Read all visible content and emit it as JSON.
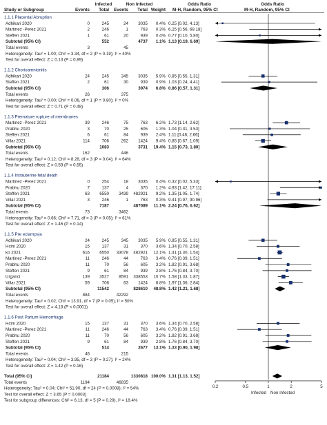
{
  "chart_data": {
    "type": "forest",
    "header": {
      "group1": "Infected",
      "group2": "Non Infected",
      "or_left": "Odds Ratio",
      "or_right": "Odds Ratio",
      "study_col": "Study or Subgroup",
      "events": "Events",
      "total": "Total",
      "weight": "Weight",
      "method_left": "M-H, Random, 95% CI",
      "method_right": "M-H, Random, 95% CI"
    },
    "x_axis": {
      "scale": "log",
      "range": [
        0.2,
        5
      ],
      "ticks": [
        0.2,
        0.5,
        1,
        2,
        5
      ],
      "tick_labels": [
        "0.2",
        "0.5",
        "1",
        "2",
        "5"
      ],
      "left_label": "Infected",
      "right_label": "Non Infected"
    },
    "subgroups": [
      {
        "title": "1.1.1 Placental Abruption",
        "studies": [
          {
            "name": "Adhikari 2020",
            "e1": "0",
            "t1": "245",
            "e2": "24",
            "t2": "3035",
            "weight": "0.4%",
            "ci": "0.25 [0.02, 4.13]",
            "or": 0.25,
            "lo": 0.02,
            "hi": 4.13
          },
          {
            "name": "Martinez -Perez 2021",
            "e1": "2",
            "t1": "246",
            "e2": "1",
            "t2": "763",
            "weight": "0.3%",
            "ci": "6.25 [0.56, 69.18]",
            "or": 6.25,
            "lo": 0.56,
            "hi": 69.18
          },
          {
            "name": "Steffen 2021",
            "e1": "1",
            "t1": "61",
            "e2": "20",
            "t2": "939",
            "weight": "0.4%",
            "ci": "0.77 [0.10, 5.80]",
            "or": 0.77,
            "lo": 0.1,
            "hi": 5.8
          }
        ],
        "subtotal": {
          "label": "Subtotal (95% CI)",
          "t1": "552",
          "t2": "4737",
          "weight": "1.1%",
          "ci": "1.13 [0.19, 6.69]",
          "or": 1.13,
          "lo": 0.19,
          "hi": 6.69
        },
        "total_events": {
          "label": "Total events",
          "e1": "3",
          "e2": "45"
        },
        "heterogeneity": "Heterogeneity: Tau² = 1.00; Chi² = 3.34, df = 2 (P = 0.19); I² = 40%",
        "overall": "Test for overall effect: Z = 0.13 (P = 0.89)"
      },
      {
        "title": "1.1.2 Chorioamnionitis",
        "studies": [
          {
            "name": "Adhikari 2020",
            "e1": "24",
            "t1": "245",
            "e2": "345",
            "t2": "3035",
            "weight": "5.9%",
            "ci": "0.85 [0.55, 1.31]",
            "or": 0.85,
            "lo": 0.55,
            "hi": 1.31
          },
          {
            "name": "Steffen 2021",
            "e1": "2",
            "t1": "61",
            "e2": "30",
            "t2": "939",
            "weight": "0.9%",
            "ci": "1.03 [0.24, 4.41]",
            "or": 1.03,
            "lo": 0.24,
            "hi": 4.41
          }
        ],
        "subtotal": {
          "label": "Subtotal (95% CI)",
          "t1": "306",
          "t2": "3974",
          "weight": "6.8%",
          "ci": "0.86 [0.57, 1.31]",
          "or": 0.86,
          "lo": 0.57,
          "hi": 1.31
        },
        "total_events": {
          "label": "Total events",
          "e1": "26",
          "e2": "375"
        },
        "heterogeneity": "Heterogeneity: Tau² = 0.00; Chi² = 0.06, df = 1 (P = 0.80); I² = 0%",
        "overall": "Test for overall effect: Z = 0.71 (P = 0.48)"
      },
      {
        "title": "1.1.3 Premature rupture of membranes",
        "studies": [
          {
            "name": "Martinez -Perez 2021",
            "e1": "39",
            "t1": "246",
            "e2": "75",
            "t2": "763",
            "weight": "6.2%",
            "ci": "1.73 [1.14, 2.62]",
            "or": 1.73,
            "lo": 1.14,
            "hi": 2.62
          },
          {
            "name": "Prabhu 2020",
            "e1": "3",
            "t1": "70",
            "e2": "25",
            "t2": "605",
            "weight": "1.3%",
            "ci": "1.04 [0.31, 3.53]",
            "or": 1.04,
            "lo": 0.31,
            "hi": 3.53
          },
          {
            "name": "Steffen 2021",
            "e1": "6",
            "t1": "61",
            "e2": "84",
            "t2": "939",
            "weight": "2.4%",
            "ci": "1.11 [0.46, 2.66]",
            "or": 1.11,
            "lo": 0.46,
            "hi": 2.66
          },
          {
            "name": "Villar 2021",
            "e1": "114",
            "t1": "706",
            "e2": "262",
            "t2": "1424",
            "weight": "9.4%",
            "ci": "0.85 [0.67, 1.09]",
            "or": 0.85,
            "lo": 0.67,
            "hi": 1.09
          }
        ],
        "subtotal": {
          "label": "Subtotal (95% CI)",
          "t1": "1083",
          "t2": "3731",
          "weight": "19.4%",
          "ci": "1.15 [0.73, 1.80]",
          "or": 1.15,
          "lo": 0.73,
          "hi": 1.8
        },
        "total_events": {
          "label": "Total events",
          "e1": "162",
          "e2": "446"
        },
        "heterogeneity": "Heterogeneity: Tau² = 0.12; Chi² = 8.28, df = 3 (P = 0.04); I² = 64%",
        "overall": "Test for overall effect: Z = 0.59 (P = 0.55)"
      },
      {
        "title": "1.1.4 Intrauterine fetal death",
        "studies": [
          {
            "name": "Martinez -Perez 2021",
            "e1": "0",
            "t1": "254",
            "e2": "18",
            "t2": "3035",
            "weight": "0.4%",
            "ci": "0.32 [0.02, 5.33]",
            "or": 0.32,
            "lo": 0.02,
            "hi": 5.33
          },
          {
            "name": "Prabhu 2020",
            "e1": "7",
            "t1": "137",
            "e2": "4",
            "t2": "370",
            "weight": "1.2%",
            "ci": "4.93 [1.42, 17.11]",
            "or": 4.93,
            "lo": 1.42,
            "hi": 17.11
          },
          {
            "name": "Steffen 2021",
            "e1": "63",
            "t1": "6550",
            "e2": "3439",
            "t2": "482921",
            "weight": "9.2%",
            "ci": "1.35 [1.05, 1.74]",
            "or": 1.35,
            "lo": 1.05,
            "hi": 1.74
          },
          {
            "name": "Villar 2021",
            "e1": "3",
            "t1": "246",
            "e2": "1",
            "t2": "763",
            "weight": "0.3%",
            "ci": "9.41 [0.97, 90.96]",
            "or": 9.41,
            "lo": 0.97,
            "hi": 90.96
          }
        ],
        "subtotal": {
          "label": "Subtotal (95% CI)",
          "t1": "7187",
          "t2": "487089",
          "weight": "11.1%",
          "ci": "2.24 [0.76, 6.62]",
          "or": 2.24,
          "lo": 0.76,
          "hi": 6.62
        },
        "total_events": {
          "label": "Total events",
          "e1": "73",
          "e2": "3462"
        },
        "heterogeneity": "Heterogeneity: Tau² = 0.66; Chi² = 7.71, df = 3 (P = 0.05); I² = 61%",
        "overall": "Test for overall effect: Z = 1.46 (P = 0.14)"
      },
      {
        "title": "1.1.5 Pre eclampsia",
        "studies": [
          {
            "name": "Adhikari 2020",
            "e1": "24",
            "t1": "245",
            "e2": "345",
            "t2": "3035",
            "weight": "5.9%",
            "ci": "0.85 [0.55, 1.31]",
            "or": 0.85,
            "lo": 0.55,
            "hi": 1.31
          },
          {
            "name": "Hcini 2020",
            "e1": "15",
            "t1": "137",
            "e2": "31",
            "t2": "370",
            "weight": "3.6%",
            "ci": "1.34 [0.70, 2.58]",
            "or": 1.34,
            "lo": 0.7,
            "hi": 2.58
          },
          {
            "name": "ko 2021",
            "e1": "616",
            "t1": "6550",
            "e2": "33078",
            "t2": "482921",
            "weight": "12.1%",
            "ci": "1.41 [1.30, 1.54]",
            "or": 1.41,
            "lo": 1.3,
            "hi": 1.54
          },
          {
            "name": "Martinez -Perez 2021",
            "e1": "11",
            "t1": "246",
            "e2": "44",
            "t2": "763",
            "weight": "3.4%",
            "ci": "0.76 [0.39, 1.51]",
            "or": 0.76,
            "lo": 0.39,
            "hi": 1.51
          },
          {
            "name": "Prabhu 2020",
            "e1": "11",
            "t1": "70",
            "e2": "56",
            "t2": "605",
            "weight": "3.2%",
            "ci": "1.82 [0.91, 3.68]",
            "or": 1.82,
            "lo": 0.91,
            "hi": 3.68
          },
          {
            "name": "Steffen 2021",
            "e1": "9",
            "t1": "61",
            "e2": "84",
            "t2": "939",
            "weight": "2.8%",
            "ci": "1.76 [0.84, 3.70]",
            "or": 1.76,
            "lo": 0.84,
            "hi": 3.7
          },
          {
            "name": "Urganci",
            "e1": "139",
            "t1": "3527",
            "e2": "8591",
            "t2": "338553",
            "weight": "10.7%",
            "ci": "1.58 [1.33, 1.87]",
            "or": 1.58,
            "lo": 1.33,
            "hi": 1.87
          },
          {
            "name": "Villar 2021",
            "e1": "59",
            "t1": "706",
            "e2": "63",
            "t2": "1424",
            "weight": "6.8%",
            "ci": "1.97 [1.36, 2.84]",
            "or": 1.97,
            "lo": 1.36,
            "hi": 2.84
          }
        ],
        "subtotal": {
          "label": "Subtotal (95% CI)",
          "t1": "11542",
          "t2": "828610",
          "weight": "48.8%",
          "ci": "1.42 [1.21, 1.68]",
          "or": 1.42,
          "lo": 1.21,
          "hi": 1.68
        },
        "total_events": {
          "label": "Total events",
          "e1": "884",
          "e2": "42292"
        },
        "heterogeneity": "Heterogeneity: Tau² = 0.02; Chi² = 13.91, df = 7 (P = 0.05); I² = 50%",
        "overall": "Test for overall effect: Z = 4.18 (P < 0.0001)"
      },
      {
        "title": "1.1.6 Post Partum Hemorrhage",
        "studies": [
          {
            "name": "Hcini 2020",
            "e1": "15",
            "t1": "137",
            "e2": "31",
            "t2": "370",
            "weight": "3.6%",
            "ci": "1.34 [0.70, 2.58]",
            "or": 1.34,
            "lo": 0.7,
            "hi": 2.58
          },
          {
            "name": "Martinez -Perez 2021",
            "e1": "11",
            "t1": "246",
            "e2": "44",
            "t2": "763",
            "weight": "3.4%",
            "ci": "0.76 [0.39, 1.51]",
            "or": 0.76,
            "lo": 0.39,
            "hi": 1.51
          },
          {
            "name": "Prabhu 2020",
            "e1": "11",
            "t1": "70",
            "e2": "56",
            "t2": "605",
            "weight": "3.2%",
            "ci": "1.82 [0.91, 3.68]",
            "or": 1.82,
            "lo": 0.91,
            "hi": 3.68
          },
          {
            "name": "Steffen 2021",
            "e1": "9",
            "t1": "61",
            "e2": "84",
            "t2": "939",
            "weight": "2.8%",
            "ci": "1.76 [0.84, 3.70]",
            "or": 1.76,
            "lo": 0.84,
            "hi": 3.7
          }
        ],
        "subtotal": {
          "label": "Subtotal (95% CI)",
          "t1": "514",
          "t2": "2677",
          "weight": "13.1%",
          "ci": "1.33 [0.90, 1.98]",
          "or": 1.33,
          "lo": 0.9,
          "hi": 1.98
        },
        "total_events": {
          "label": "Total events",
          "e1": "46",
          "e2": "215"
        },
        "heterogeneity": "Heterogeneity: Tau² = 0.04; Chi² = 3.95, df = 3 (P = 0.27); I² = 24%",
        "overall": "Test for overall effect: Z = 1.42 (P = 0.16)"
      }
    ],
    "total": {
      "label": "Total (95% CI)",
      "t1": "21184",
      "t2": "1330818",
      "weight": "100.0%",
      "ci": "1.31 [1.13, 1.52]",
      "or": 1.31,
      "lo": 1.13,
      "hi": 1.52
    },
    "total_events": {
      "label": "Total events",
      "e1": "1194",
      "e2": "46835"
    },
    "heterogeneity": "Heterogeneity: Tau² = 0.04; Chi² = 51.90, df = 24 (P = 0.0008); I² = 54%",
    "overall": "Test for overall effect: Z = 3.65 (P = 0.0003)",
    "subgroup_diff": "Test for subgroup differences: Chi² = 6.13, df = 5 (P = 0.29), I² = 18.4%",
    "colors": {
      "square": "#17306e",
      "diamond": "#000000",
      "ci_line": "#000000"
    }
  }
}
